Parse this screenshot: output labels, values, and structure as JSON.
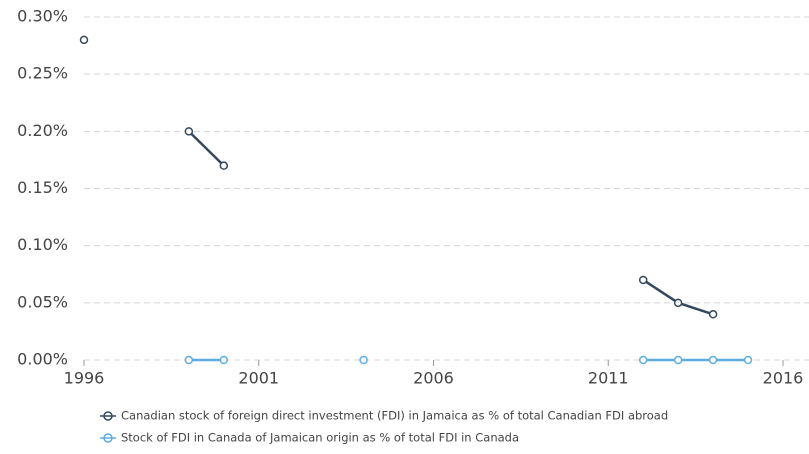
{
  "chart_data": {
    "type": "line",
    "x": [
      1996,
      1997,
      1998,
      1999,
      2000,
      2001,
      2002,
      2003,
      2004,
      2005,
      2006,
      2007,
      2008,
      2009,
      2010,
      2011,
      2012,
      2013,
      2014,
      2015
    ],
    "series": [
      {
        "name": "Canadian stock of foreign direct investment (FDI) in Jamaica as % of total Canadian FDI abroad",
        "color": "#34495e",
        "values": [
          0.28,
          null,
          null,
          0.2,
          0.17,
          null,
          null,
          null,
          null,
          null,
          null,
          null,
          null,
          null,
          null,
          null,
          0.07,
          0.05,
          0.04,
          null
        ]
      },
      {
        "name": "Stock of FDI in Canada of Jamaican origin as % of total FDI in Canada",
        "color": "#5dade2",
        "values": [
          null,
          null,
          null,
          0,
          0,
          null,
          null,
          null,
          0,
          null,
          null,
          null,
          null,
          null,
          null,
          null,
          0,
          0,
          0,
          0
        ]
      }
    ],
    "xlim": [
      1996,
      2016
    ],
    "xticks": [
      1996,
      2001,
      2006,
      2011,
      2016
    ],
    "ylim": [
      0,
      0.3
    ],
    "yticks": [
      {
        "value": 0,
        "label": "0.00%"
      },
      {
        "value": 0.05,
        "label": "0.05%"
      },
      {
        "value": 0.1,
        "label": "0.10%"
      },
      {
        "value": 0.15,
        "label": "0.15%"
      },
      {
        "value": 0.2,
        "label": "0.20%"
      },
      {
        "value": 0.25,
        "label": "0.25%"
      },
      {
        "value": 0.3,
        "label": "0.30%"
      }
    ],
    "grid": true,
    "legend": "bottom"
  }
}
